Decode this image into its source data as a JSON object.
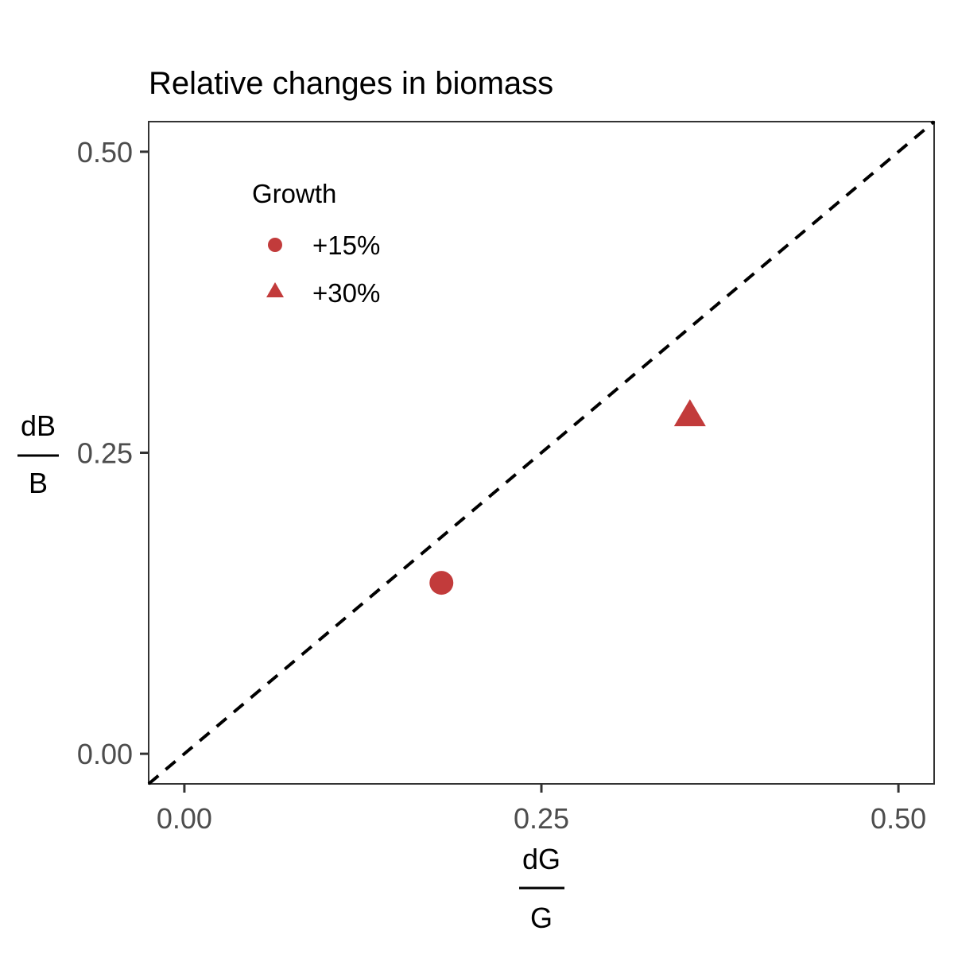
{
  "chart_data": {
    "type": "scatter",
    "title": "Relative changes in biomass",
    "xlabel": {
      "numerator": "dG",
      "denominator": "G"
    },
    "ylabel": {
      "numerator": "dB",
      "denominator": "B"
    },
    "xlim": [
      -0.025,
      0.525
    ],
    "ylim": [
      -0.025,
      0.525
    ],
    "x_ticks": [
      0.0,
      0.25,
      0.5
    ],
    "x_tick_labels": [
      "0.00",
      "0.25",
      "0.50"
    ],
    "y_ticks": [
      0.0,
      0.25,
      0.5
    ],
    "y_tick_labels": [
      "0.00",
      "0.25",
      "0.50"
    ],
    "grid": false,
    "reference_line": {
      "type": "identity",
      "style": "dashed",
      "color": "#000000"
    },
    "legend": {
      "title": "Growth",
      "position": "top-left",
      "entries": [
        {
          "label": "+15%",
          "shape": "circle"
        },
        {
          "label": "+30%",
          "shape": "triangle"
        }
      ]
    },
    "point_color": "#c23b3b",
    "series": [
      {
        "name": "+15%",
        "shape": "circle",
        "x": [
          0.18
        ],
        "y": [
          0.142
        ]
      },
      {
        "name": "+30%",
        "shape": "triangle",
        "x": [
          0.354
        ],
        "y": [
          0.281
        ]
      }
    ]
  }
}
